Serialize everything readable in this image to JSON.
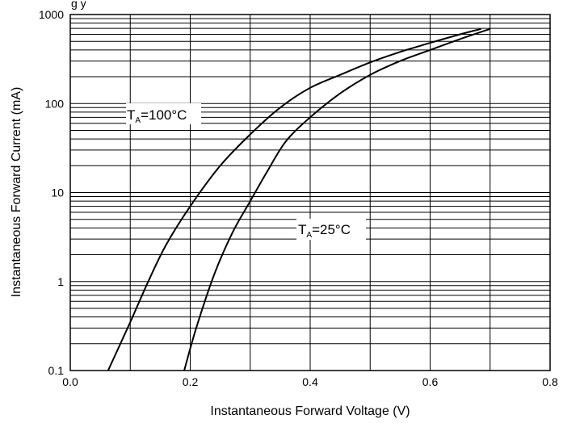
{
  "header_fragment": "g     y",
  "chart_data": {
    "type": "line",
    "xlabel": "Instantaneous Forward Voltage (V)",
    "ylabel": "Instantaneous Forward Current (mA)",
    "xlim": [
      0.0,
      0.8
    ],
    "ylim": [
      0.1,
      1000
    ],
    "y_scale": "log",
    "grid": true,
    "x_ticks": [
      "0.0",
      "0.2",
      "0.4",
      "0.6",
      "0.8"
    ],
    "y_ticks": [
      "0.1",
      "1",
      "10",
      "100",
      "1000"
    ],
    "series": [
      {
        "label_main": "T",
        "label_sub": "A",
        "label_rest": "=100°C",
        "x": [
          0.063,
          0.1,
          0.13,
          0.16,
          0.2,
          0.25,
          0.3,
          0.35,
          0.4,
          0.45,
          0.5,
          0.55,
          0.6,
          0.65,
          0.685
        ],
        "y": [
          0.1,
          0.35,
          1.0,
          2.6,
          7.0,
          20,
          45,
          90,
          150,
          210,
          290,
          380,
          480,
          600,
          690
        ]
      },
      {
        "label_main": "T",
        "label_sub": "A",
        "label_rest": "=25°C",
        "x": [
          0.19,
          0.21,
          0.24,
          0.27,
          0.3,
          0.33,
          0.36,
          0.4,
          0.45,
          0.5,
          0.55,
          0.6,
          0.65,
          0.7
        ],
        "y": [
          0.1,
          0.3,
          1.2,
          3.5,
          8.0,
          18,
          38,
          70,
          130,
          210,
          300,
          400,
          530,
          690
        ]
      }
    ]
  }
}
